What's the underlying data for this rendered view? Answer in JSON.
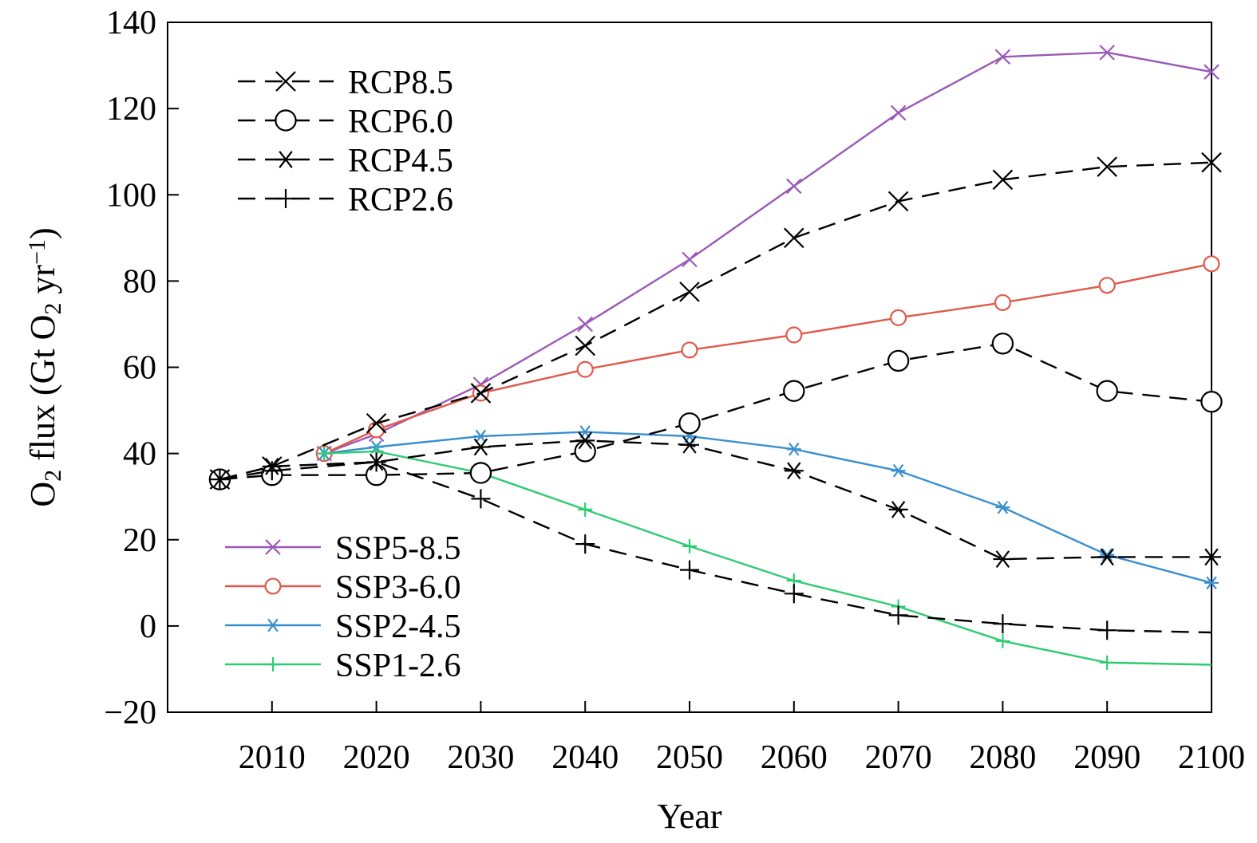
{
  "chart_data": {
    "type": "line",
    "xlabel": "Year",
    "ylabel_parts": [
      {
        "t": "O",
        "sub": false
      },
      {
        "t": "2",
        "sub": true
      },
      {
        "t": " flux (Gt O",
        "sub": false
      },
      {
        "t": "2",
        "sub": true
      },
      {
        "t": " yr",
        "sub": false
      },
      {
        "t": "−1",
        "sup": true
      },
      {
        "t": ")",
        "sub": false
      }
    ],
    "xlim": [
      2000,
      2100
    ],
    "ylim": [
      -20,
      140
    ],
    "xticks": [
      2010,
      2020,
      2030,
      2040,
      2050,
      2060,
      2070,
      2080,
      2090,
      2100
    ],
    "yticks": [
      -20,
      0,
      20,
      40,
      60,
      80,
      100,
      120,
      140
    ],
    "ytick_labels": [
      "−20",
      "0",
      "20",
      "40",
      "60",
      "80",
      "100",
      "120",
      "140"
    ],
    "legends": [
      {
        "placement": "top-left",
        "series": [
          "RCP8.5",
          "RCP6.0",
          "RCP4.5",
          "RCP2.6"
        ]
      },
      {
        "placement": "bottom-left",
        "series": [
          "SSP5-8.5",
          "SSP3-6.0",
          "SSP2-4.5",
          "SSP1-2.6"
        ]
      }
    ],
    "series": [
      {
        "name": "RCP8.5",
        "color": "#000000",
        "dashed": true,
        "marker": "x",
        "x": [
          2005,
          2010,
          2020,
          2030,
          2040,
          2050,
          2060,
          2070,
          2080,
          2090,
          2100
        ],
        "y": [
          34,
          37,
          47,
          54,
          65,
          77.5,
          90,
          98.5,
          103.5,
          106.5,
          107.5
        ]
      },
      {
        "name": "RCP6.0",
        "color": "#000000",
        "dashed": true,
        "marker": "circle",
        "x": [
          2005,
          2010,
          2020,
          2030,
          2040,
          2050,
          2060,
          2070,
          2080,
          2090,
          2100
        ],
        "y": [
          34,
          35,
          35,
          35.5,
          40.5,
          47,
          54.5,
          61.5,
          65.5,
          54.5,
          52
        ]
      },
      {
        "name": "RCP4.5",
        "color": "#000000",
        "dashed": true,
        "marker": "star",
        "x": [
          2005,
          2010,
          2020,
          2030,
          2040,
          2050,
          2060,
          2070,
          2080,
          2090,
          2100
        ],
        "y": [
          34,
          37,
          38,
          41.5,
          43,
          42,
          36,
          27,
          15.5,
          16,
          16
        ]
      },
      {
        "name": "RCP2.6",
        "color": "#000000",
        "dashed": true,
        "marker": "plus",
        "x": [
          2005,
          2010,
          2020,
          2030,
          2040,
          2050,
          2060,
          2070,
          2080,
          2090,
          2100
        ],
        "y": [
          34,
          36,
          38,
          29.5,
          19,
          13,
          7.5,
          2.5,
          0.5,
          -1,
          -1.5
        ]
      },
      {
        "name": "SSP5-8.5",
        "color": "#9b59b6",
        "dashed": false,
        "marker": "x",
        "x": [
          2015,
          2020,
          2030,
          2040,
          2050,
          2060,
          2070,
          2080,
          2090,
          2100
        ],
        "y": [
          40,
          44.5,
          56,
          70,
          85,
          102,
          119,
          132,
          133,
          128.5
        ]
      },
      {
        "name": "SSP3-6.0",
        "color": "#e05a4b",
        "dashed": false,
        "marker": "circle",
        "x": [
          2015,
          2020,
          2030,
          2040,
          2050,
          2060,
          2070,
          2080,
          2090,
          2100
        ],
        "y": [
          40,
          45.5,
          54,
          59.5,
          64,
          67.5,
          71.5,
          75,
          79,
          84
        ]
      },
      {
        "name": "SSP2-4.5",
        "color": "#3a8fd0",
        "dashed": false,
        "marker": "star",
        "x": [
          2015,
          2020,
          2030,
          2040,
          2050,
          2060,
          2070,
          2080,
          2090,
          2100
        ],
        "y": [
          40,
          41.5,
          44,
          45,
          44,
          41,
          36,
          27.5,
          16.5,
          10
        ]
      },
      {
        "name": "SSP1-2.6",
        "color": "#2ecc71",
        "dashed": false,
        "marker": "plus",
        "x": [
          2015,
          2020,
          2030,
          2040,
          2050,
          2060,
          2070,
          2080,
          2090,
          2100
        ],
        "y": [
          40,
          40.5,
          35.5,
          27,
          18.5,
          10.5,
          4.5,
          -3.5,
          -8.5,
          -9
        ]
      }
    ]
  }
}
